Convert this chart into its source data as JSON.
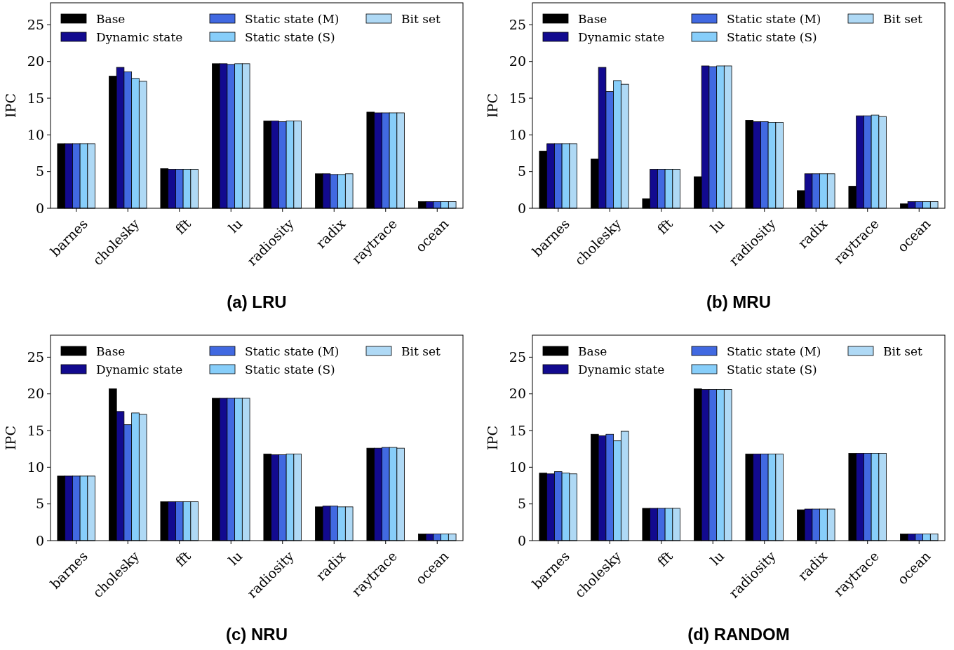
{
  "chart_data": [
    {
      "type": "bar",
      "title": "(a) LRU",
      "ylabel": "IPC",
      "categories": [
        "barnes",
        "cholesky",
        "fft",
        "lu",
        "radiosity",
        "radix",
        "raytrace",
        "ocean"
      ],
      "ylim": [
        0,
        28
      ],
      "yticks": [
        0,
        5,
        10,
        15,
        20,
        25
      ],
      "legend": "top",
      "series": [
        {
          "name": "Base",
          "color": "#000000",
          "values": [
            8.8,
            18.0,
            5.4,
            19.7,
            11.9,
            4.7,
            13.1,
            0.9
          ]
        },
        {
          "name": "Dynamic state",
          "color": "#120a8f",
          "values": [
            8.8,
            19.2,
            5.3,
            19.7,
            11.9,
            4.7,
            13.0,
            0.9
          ]
        },
        {
          "name": "Static state (M)",
          "color": "#4169e1",
          "values": [
            8.8,
            18.6,
            5.3,
            19.6,
            11.8,
            4.6,
            13.0,
            0.9
          ]
        },
        {
          "name": "Static state (S)",
          "color": "#87cefa",
          "values": [
            8.8,
            17.7,
            5.3,
            19.7,
            11.9,
            4.6,
            13.0,
            0.9
          ]
        },
        {
          "name": "Bit set",
          "color": "#afd9f5",
          "values": [
            8.8,
            17.3,
            5.3,
            19.7,
            11.9,
            4.7,
            13.0,
            0.9
          ]
        }
      ]
    },
    {
      "type": "bar",
      "title": "(b) MRU",
      "ylabel": "IPC",
      "categories": [
        "barnes",
        "cholesky",
        "fft",
        "lu",
        "radiosity",
        "radix",
        "raytrace",
        "ocean"
      ],
      "ylim": [
        0,
        28
      ],
      "yticks": [
        0,
        5,
        10,
        15,
        20,
        25
      ],
      "legend": "top",
      "series": [
        {
          "name": "Base",
          "color": "#000000",
          "values": [
            7.8,
            6.7,
            1.3,
            4.3,
            12.0,
            2.4,
            3.0,
            0.6
          ]
        },
        {
          "name": "Dynamic state",
          "color": "#120a8f",
          "values": [
            8.8,
            19.2,
            5.3,
            19.4,
            11.8,
            4.7,
            12.6,
            0.9
          ]
        },
        {
          "name": "Static state (M)",
          "color": "#4169e1",
          "values": [
            8.8,
            15.9,
            5.3,
            19.3,
            11.8,
            4.7,
            12.6,
            0.9
          ]
        },
        {
          "name": "Static state (S)",
          "color": "#87cefa",
          "values": [
            8.8,
            17.4,
            5.3,
            19.4,
            11.7,
            4.7,
            12.7,
            0.9
          ]
        },
        {
          "name": "Bit set",
          "color": "#afd9f5",
          "values": [
            8.8,
            16.9,
            5.3,
            19.4,
            11.7,
            4.7,
            12.5,
            0.9
          ]
        }
      ]
    },
    {
      "type": "bar",
      "title": "(c) NRU",
      "ylabel": "IPC",
      "categories": [
        "barnes",
        "cholesky",
        "fft",
        "lu",
        "radiosity",
        "radix",
        "raytrace",
        "ocean"
      ],
      "ylim": [
        0,
        28
      ],
      "yticks": [
        0,
        5,
        10,
        15,
        20,
        25
      ],
      "legend": "top",
      "series": [
        {
          "name": "Base",
          "color": "#000000",
          "values": [
            8.8,
            20.7,
            5.3,
            19.4,
            11.8,
            4.6,
            12.6,
            0.9
          ]
        },
        {
          "name": "Dynamic state",
          "color": "#120a8f",
          "values": [
            8.8,
            17.6,
            5.3,
            19.4,
            11.7,
            4.7,
            12.6,
            0.9
          ]
        },
        {
          "name": "Static state (M)",
          "color": "#4169e1",
          "values": [
            8.8,
            15.8,
            5.3,
            19.4,
            11.7,
            4.7,
            12.7,
            0.9
          ]
        },
        {
          "name": "Static state (S)",
          "color": "#87cefa",
          "values": [
            8.8,
            17.4,
            5.3,
            19.4,
            11.8,
            4.6,
            12.7,
            0.9
          ]
        },
        {
          "name": "Bit set",
          "color": "#afd9f5",
          "values": [
            8.8,
            17.2,
            5.3,
            19.4,
            11.8,
            4.6,
            12.6,
            0.9
          ]
        }
      ]
    },
    {
      "type": "bar",
      "title": "(d) RANDOM",
      "ylabel": "IPC",
      "categories": [
        "barnes",
        "cholesky",
        "fft",
        "lu",
        "radiosity",
        "radix",
        "raytrace",
        "ocean"
      ],
      "ylim": [
        0,
        28
      ],
      "yticks": [
        0,
        5,
        10,
        15,
        20,
        25
      ],
      "legend": "top",
      "series": [
        {
          "name": "Base",
          "color": "#000000",
          "values": [
            9.2,
            14.5,
            4.4,
            20.7,
            11.8,
            4.2,
            11.9,
            0.9
          ]
        },
        {
          "name": "Dynamic state",
          "color": "#120a8f",
          "values": [
            9.1,
            14.3,
            4.4,
            20.6,
            11.8,
            4.3,
            11.9,
            0.9
          ]
        },
        {
          "name": "Static state (M)",
          "color": "#4169e1",
          "values": [
            9.4,
            14.5,
            4.4,
            20.6,
            11.8,
            4.3,
            11.9,
            0.9
          ]
        },
        {
          "name": "Static state (S)",
          "color": "#87cefa",
          "values": [
            9.2,
            13.6,
            4.4,
            20.6,
            11.8,
            4.3,
            11.9,
            0.9
          ]
        },
        {
          "name": "Bit set",
          "color": "#afd9f5",
          "values": [
            9.1,
            14.9,
            4.4,
            20.6,
            11.8,
            4.3,
            11.9,
            0.9
          ]
        }
      ]
    }
  ]
}
